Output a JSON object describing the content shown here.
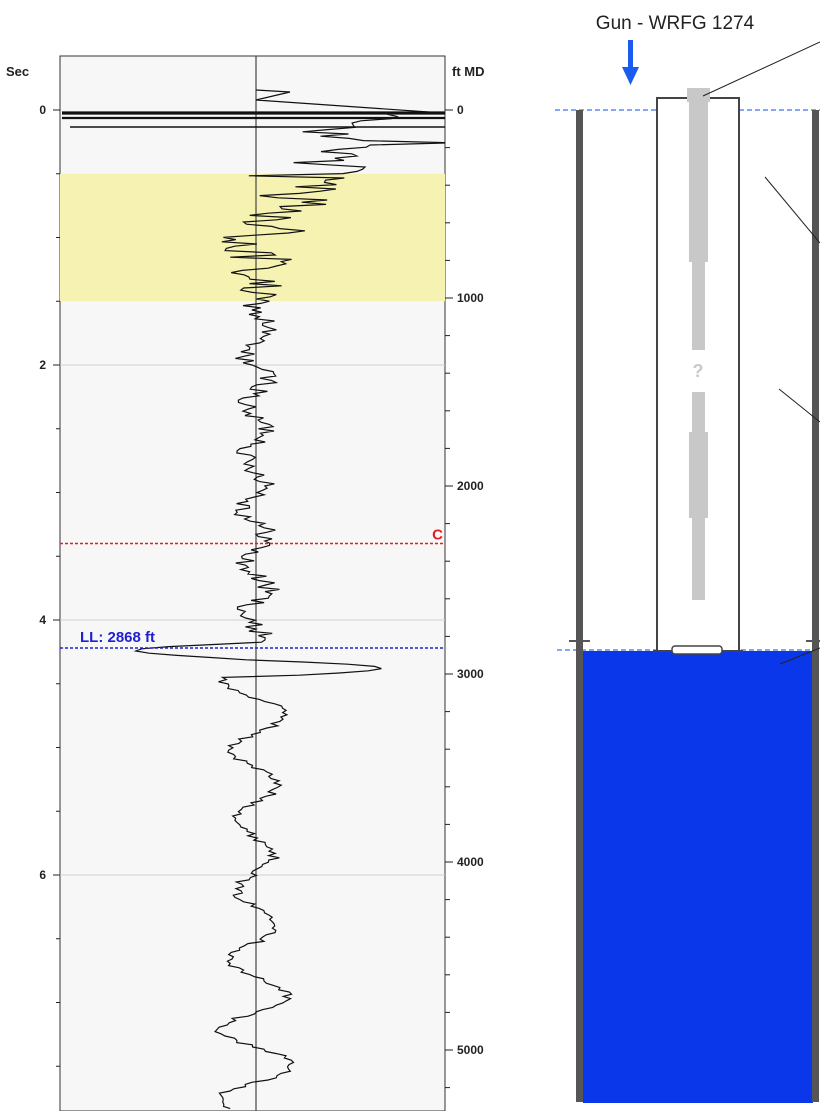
{
  "log_panel": {
    "left_axis_title": "Sec",
    "right_axis_title": "ft MD",
    "left_ticks": [
      {
        "value": 0,
        "label": "0"
      },
      {
        "value": 2,
        "label": "2"
      },
      {
        "value": 4,
        "label": "4"
      },
      {
        "value": 6,
        "label": "6"
      }
    ],
    "right_ticks": [
      {
        "value": 0,
        "label": "0"
      },
      {
        "value": 1000,
        "label": "1000"
      },
      {
        "value": 2000,
        "label": "2000"
      },
      {
        "value": 3000,
        "label": "3000"
      },
      {
        "value": 4000,
        "label": "4000"
      },
      {
        "value": 5000,
        "label": "5000"
      }
    ],
    "highlight_band_sec": [
      0.5,
      1.5
    ],
    "highlight_color": "#f6f3b2",
    "markers": [
      {
        "label": "C",
        "sec": 3.4,
        "color": "#e02020"
      },
      {
        "label": "LL: 2868 ft",
        "sec": 4.22,
        "depth_ft": 2868,
        "color": "#2020d0"
      }
    ]
  },
  "wellbore": {
    "gun_label": "Gun - WRFG 1274",
    "unknown_label": "?",
    "fluid_level_ft": 2868,
    "fluid_color": "#0a37ea",
    "arrow_color": "#1a5cf0"
  }
}
